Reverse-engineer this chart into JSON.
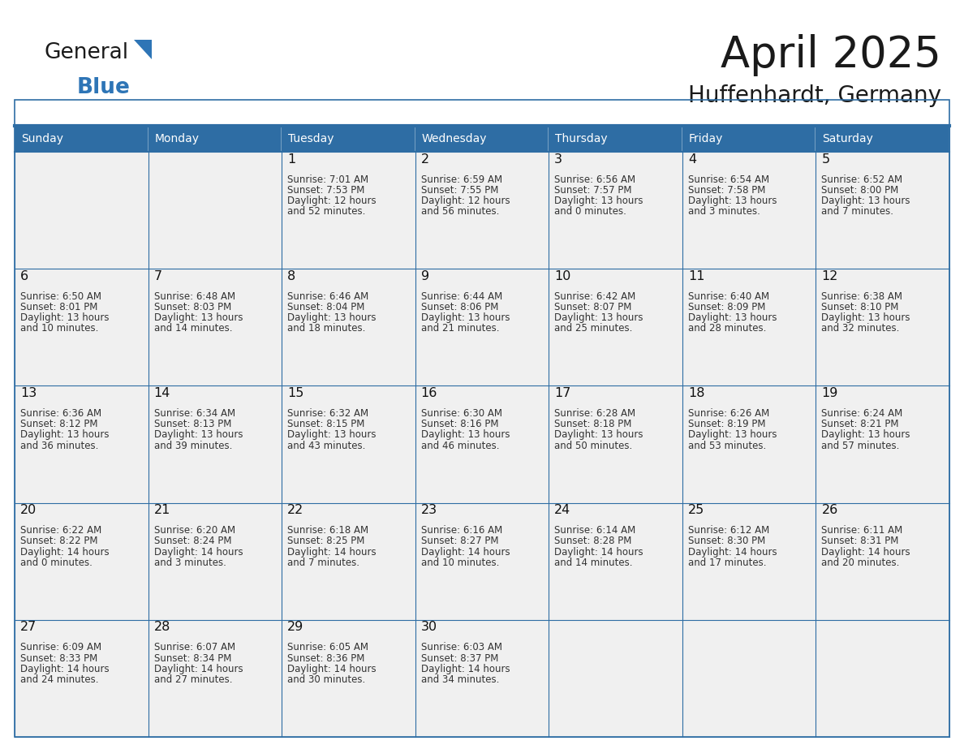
{
  "title": "April 2025",
  "subtitle": "Huffenhardt, Germany",
  "header_bg": "#2E6DA4",
  "header_text_color": "#FFFFFF",
  "cell_bg": "#F0F0F0",
  "cell_bg_last": "#F0F0F0",
  "border_color": "#2E6DA4",
  "grid_line_color": "#2E6DA4",
  "day_names": [
    "Sunday",
    "Monday",
    "Tuesday",
    "Wednesday",
    "Thursday",
    "Friday",
    "Saturday"
  ],
  "days": [
    {
      "day": 1,
      "col": 2,
      "row": 0,
      "sunrise": "7:01 AM",
      "sunset": "7:53 PM",
      "daylight": "12 hours and 52 minutes."
    },
    {
      "day": 2,
      "col": 3,
      "row": 0,
      "sunrise": "6:59 AM",
      "sunset": "7:55 PM",
      "daylight": "12 hours and 56 minutes."
    },
    {
      "day": 3,
      "col": 4,
      "row": 0,
      "sunrise": "6:56 AM",
      "sunset": "7:57 PM",
      "daylight": "13 hours and 0 minutes."
    },
    {
      "day": 4,
      "col": 5,
      "row": 0,
      "sunrise": "6:54 AM",
      "sunset": "7:58 PM",
      "daylight": "13 hours and 3 minutes."
    },
    {
      "day": 5,
      "col": 6,
      "row": 0,
      "sunrise": "6:52 AM",
      "sunset": "8:00 PM",
      "daylight": "13 hours and 7 minutes."
    },
    {
      "day": 6,
      "col": 0,
      "row": 1,
      "sunrise": "6:50 AM",
      "sunset": "8:01 PM",
      "daylight": "13 hours and 10 minutes."
    },
    {
      "day": 7,
      "col": 1,
      "row": 1,
      "sunrise": "6:48 AM",
      "sunset": "8:03 PM",
      "daylight": "13 hours and 14 minutes."
    },
    {
      "day": 8,
      "col": 2,
      "row": 1,
      "sunrise": "6:46 AM",
      "sunset": "8:04 PM",
      "daylight": "13 hours and 18 minutes."
    },
    {
      "day": 9,
      "col": 3,
      "row": 1,
      "sunrise": "6:44 AM",
      "sunset": "8:06 PM",
      "daylight": "13 hours and 21 minutes."
    },
    {
      "day": 10,
      "col": 4,
      "row": 1,
      "sunrise": "6:42 AM",
      "sunset": "8:07 PM",
      "daylight": "13 hours and 25 minutes."
    },
    {
      "day": 11,
      "col": 5,
      "row": 1,
      "sunrise": "6:40 AM",
      "sunset": "8:09 PM",
      "daylight": "13 hours and 28 minutes."
    },
    {
      "day": 12,
      "col": 6,
      "row": 1,
      "sunrise": "6:38 AM",
      "sunset": "8:10 PM",
      "daylight": "13 hours and 32 minutes."
    },
    {
      "day": 13,
      "col": 0,
      "row": 2,
      "sunrise": "6:36 AM",
      "sunset": "8:12 PM",
      "daylight": "13 hours and 36 minutes."
    },
    {
      "day": 14,
      "col": 1,
      "row": 2,
      "sunrise": "6:34 AM",
      "sunset": "8:13 PM",
      "daylight": "13 hours and 39 minutes."
    },
    {
      "day": 15,
      "col": 2,
      "row": 2,
      "sunrise": "6:32 AM",
      "sunset": "8:15 PM",
      "daylight": "13 hours and 43 minutes."
    },
    {
      "day": 16,
      "col": 3,
      "row": 2,
      "sunrise": "6:30 AM",
      "sunset": "8:16 PM",
      "daylight": "13 hours and 46 minutes."
    },
    {
      "day": 17,
      "col": 4,
      "row": 2,
      "sunrise": "6:28 AM",
      "sunset": "8:18 PM",
      "daylight": "13 hours and 50 minutes."
    },
    {
      "day": 18,
      "col": 5,
      "row": 2,
      "sunrise": "6:26 AM",
      "sunset": "8:19 PM",
      "daylight": "13 hours and 53 minutes."
    },
    {
      "day": 19,
      "col": 6,
      "row": 2,
      "sunrise": "6:24 AM",
      "sunset": "8:21 PM",
      "daylight": "13 hours and 57 minutes."
    },
    {
      "day": 20,
      "col": 0,
      "row": 3,
      "sunrise": "6:22 AM",
      "sunset": "8:22 PM",
      "daylight": "14 hours and 0 minutes."
    },
    {
      "day": 21,
      "col": 1,
      "row": 3,
      "sunrise": "6:20 AM",
      "sunset": "8:24 PM",
      "daylight": "14 hours and 3 minutes."
    },
    {
      "day": 22,
      "col": 2,
      "row": 3,
      "sunrise": "6:18 AM",
      "sunset": "8:25 PM",
      "daylight": "14 hours and 7 minutes."
    },
    {
      "day": 23,
      "col": 3,
      "row": 3,
      "sunrise": "6:16 AM",
      "sunset": "8:27 PM",
      "daylight": "14 hours and 10 minutes."
    },
    {
      "day": 24,
      "col": 4,
      "row": 3,
      "sunrise": "6:14 AM",
      "sunset": "8:28 PM",
      "daylight": "14 hours and 14 minutes."
    },
    {
      "day": 25,
      "col": 5,
      "row": 3,
      "sunrise": "6:12 AM",
      "sunset": "8:30 PM",
      "daylight": "14 hours and 17 minutes."
    },
    {
      "day": 26,
      "col": 6,
      "row": 3,
      "sunrise": "6:11 AM",
      "sunset": "8:31 PM",
      "daylight": "14 hours and 20 minutes."
    },
    {
      "day": 27,
      "col": 0,
      "row": 4,
      "sunrise": "6:09 AM",
      "sunset": "8:33 PM",
      "daylight": "14 hours and 24 minutes."
    },
    {
      "day": 28,
      "col": 1,
      "row": 4,
      "sunrise": "6:07 AM",
      "sunset": "8:34 PM",
      "daylight": "14 hours and 27 minutes."
    },
    {
      "day": 29,
      "col": 2,
      "row": 4,
      "sunrise": "6:05 AM",
      "sunset": "8:36 PM",
      "daylight": "14 hours and 30 minutes."
    },
    {
      "day": 30,
      "col": 3,
      "row": 4,
      "sunrise": "6:03 AM",
      "sunset": "8:37 PM",
      "daylight": "14 hours and 34 minutes."
    }
  ],
  "logo_text_general": "General",
  "logo_text_blue": "Blue",
  "logo_color_general": "#1a1a1a",
  "logo_color_blue": "#2E75B6",
  "logo_triangle_color": "#2E75B6",
  "title_color": "#1a1a1a",
  "subtitle_color": "#1a1a1a"
}
